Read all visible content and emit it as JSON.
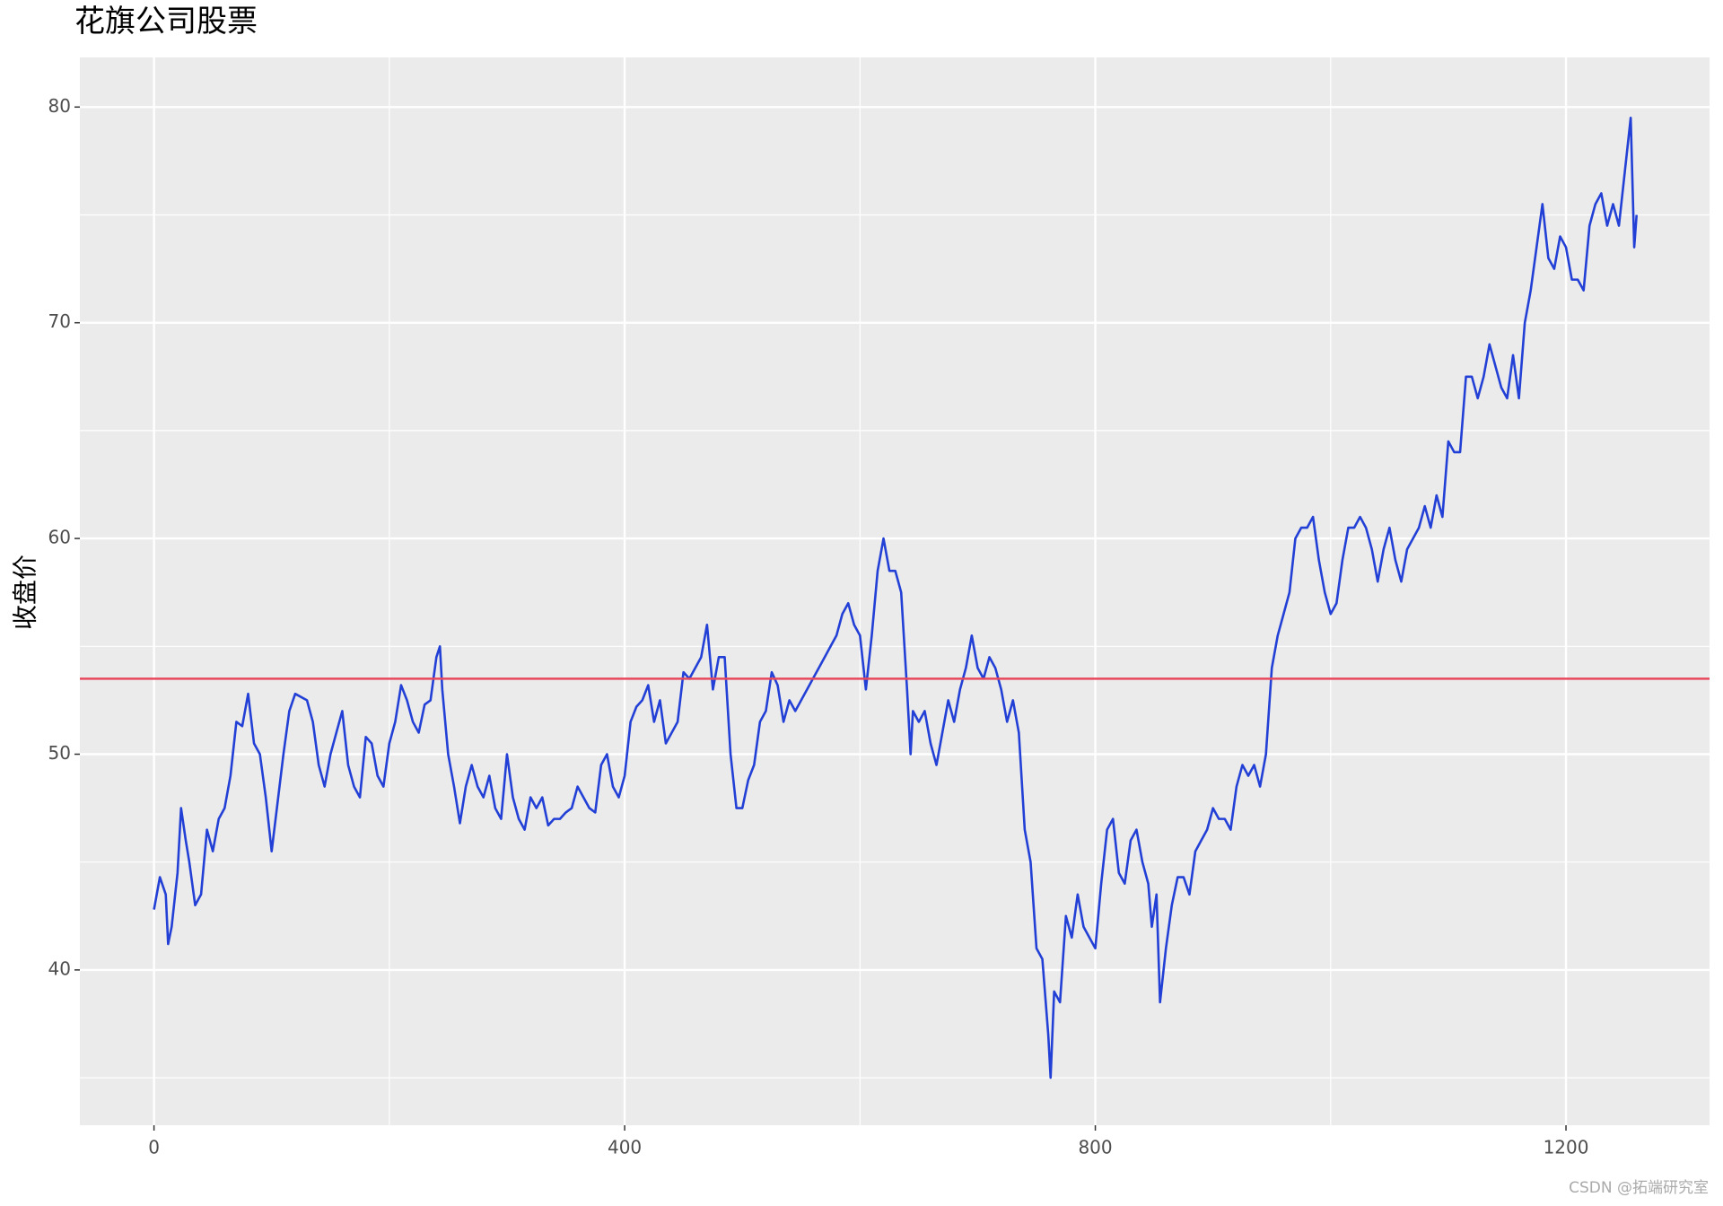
{
  "chart_data": {
    "type": "line",
    "title": "花旗公司股票",
    "y_label": "收盘价",
    "watermark": "CSDN @拓端研究室",
    "x": [
      0,
      5,
      10,
      12,
      15,
      20,
      23,
      27,
      30,
      35,
      40,
      45,
      50,
      55,
      60,
      65,
      70,
      75,
      80,
      85,
      90,
      95,
      100,
      110,
      115,
      120,
      130,
      135,
      140,
      145,
      150,
      155,
      160,
      165,
      170,
      175,
      180,
      185,
      190,
      195,
      200,
      205,
      210,
      215,
      220,
      225,
      230,
      235,
      240,
      243,
      245,
      250,
      255,
      260,
      265,
      270,
      275,
      280,
      285,
      290,
      295,
      300,
      305,
      310,
      315,
      320,
      325,
      330,
      335,
      340,
      345,
      350,
      355,
      360,
      365,
      370,
      375,
      380,
      385,
      390,
      395,
      400,
      405,
      410,
      415,
      420,
      425,
      430,
      435,
      440,
      445,
      450,
      455,
      460,
      465,
      470,
      475,
      480,
      485,
      490,
      495,
      500,
      505,
      510,
      515,
      520,
      525,
      530,
      535,
      540,
      545,
      550,
      555,
      560,
      565,
      570,
      575,
      580,
      585,
      590,
      595,
      600,
      605,
      610,
      615,
      620,
      625,
      630,
      635,
      640,
      643,
      645,
      650,
      655,
      660,
      665,
      670,
      675,
      680,
      685,
      690,
      695,
      700,
      705,
      710,
      715,
      720,
      725,
      730,
      735,
      740,
      745,
      750,
      755,
      760,
      762,
      765,
      770,
      775,
      780,
      785,
      790,
      795,
      800,
      805,
      810,
      815,
      820,
      825,
      830,
      835,
      840,
      845,
      848,
      852,
      855,
      860,
      865,
      870,
      875,
      880,
      885,
      890,
      895,
      900,
      905,
      910,
      915,
      920,
      925,
      930,
      935,
      940,
      945,
      950,
      955,
      960,
      965,
      970,
      975,
      980,
      985,
      990,
      995,
      1000,
      1005,
      1010,
      1015,
      1020,
      1025,
      1030,
      1035,
      1040,
      1045,
      1050,
      1055,
      1060,
      1065,
      1070,
      1075,
      1080,
      1085,
      1090,
      1095,
      1100,
      1105,
      1110,
      1115,
      1120,
      1125,
      1130,
      1135,
      1140,
      1145,
      1150,
      1155,
      1160,
      1165,
      1170,
      1175,
      1180,
      1185,
      1190,
      1195,
      1200,
      1205,
      1210,
      1215,
      1220,
      1225,
      1230,
      1235,
      1240,
      1245,
      1250,
      1255,
      1258,
      1260
    ],
    "series": [
      {
        "name": "收盘价",
        "color": "#2340d6",
        "values": [
          42.8,
          44.3,
          43.5,
          41.2,
          42,
          44.5,
          47.5,
          46,
          45,
          43,
          43.5,
          46.5,
          45.5,
          47,
          47.5,
          49,
          51.5,
          51.3,
          52.8,
          50.5,
          50,
          48,
          45.5,
          50,
          52,
          52.8,
          52.5,
          51.5,
          49.5,
          48.5,
          50,
          51,
          52,
          49.5,
          48.5,
          48,
          50.8,
          50.5,
          49,
          48.5,
          50.5,
          51.5,
          53.2,
          52.5,
          51.5,
          51,
          52.3,
          52.5,
          54.5,
          55,
          53,
          50,
          48.5,
          46.8,
          48.5,
          49.5,
          48.5,
          48,
          49,
          47.5,
          47,
          50,
          48,
          47,
          46.5,
          48,
          47.5,
          48,
          46.7,
          47,
          47,
          47.3,
          47.5,
          48.5,
          48,
          47.5,
          47.3,
          49.5,
          50,
          48.5,
          48,
          49,
          51.5,
          52.2,
          52.5,
          53.2,
          51.5,
          52.5,
          50.5,
          51,
          51.5,
          53.8,
          53.5,
          54,
          54.5,
          56,
          53,
          54.5,
          54.5,
          50,
          47.5,
          47.5,
          48.8,
          49.5,
          51.5,
          52,
          53.8,
          53.2,
          51.5,
          52.5,
          52,
          52.5,
          53,
          53.5,
          54,
          54.5,
          55,
          55.5,
          56.5,
          57,
          56,
          55.5,
          53,
          55.5,
          58.5,
          60,
          58.5,
          58.5,
          57.5,
          53,
          50,
          52,
          51.5,
          52,
          50.5,
          49.5,
          51,
          52.5,
          51.5,
          53,
          54,
          55.5,
          54,
          53.5,
          54.5,
          54,
          53,
          51.5,
          52.5,
          51,
          46.5,
          45,
          41,
          40.5,
          37,
          35,
          39,
          38.5,
          42.5,
          41.5,
          43.5,
          42,
          41.5,
          41,
          44,
          46.5,
          47,
          44.5,
          44,
          46,
          46.5,
          45,
          44,
          42,
          43.5,
          38.5,
          41,
          43,
          44.3,
          44.3,
          43.5,
          45.5,
          46,
          46.5,
          47.5,
          47,
          47,
          46.5,
          48.5,
          49.5,
          49,
          49.5,
          48.5,
          50,
          54,
          55.5,
          56.5,
          57.5,
          60,
          60.5,
          60.5,
          61,
          59,
          57.5,
          56.5,
          57,
          59,
          60.5,
          60.5,
          61,
          60.5,
          59.5,
          58,
          59.5,
          60.5,
          59,
          58,
          59.5,
          60,
          60.5,
          61.5,
          60.5,
          62,
          61,
          64.5,
          64,
          64,
          67.5,
          67.5,
          66.5,
          67.5,
          69,
          68,
          67,
          66.5,
          68.5,
          66.5,
          70,
          71.5,
          73.5,
          75.5,
          73,
          72.5,
          74,
          73.5,
          72,
          72,
          71.5,
          74.5,
          75.5,
          76,
          74.5,
          75.5,
          74.5,
          77,
          79.5,
          73.5,
          75
        ]
      }
    ],
    "hline": {
      "value": 53.5,
      "color": "#e8485c"
    },
    "xlim": [
      -63,
      1322
    ],
    "xticks": [
      0,
      400,
      800,
      1200
    ],
    "ylim": [
      32.8,
      82.3
    ],
    "yticks": [
      40,
      50,
      60,
      70,
      80
    ],
    "grid": true,
    "minor_grid": true
  }
}
